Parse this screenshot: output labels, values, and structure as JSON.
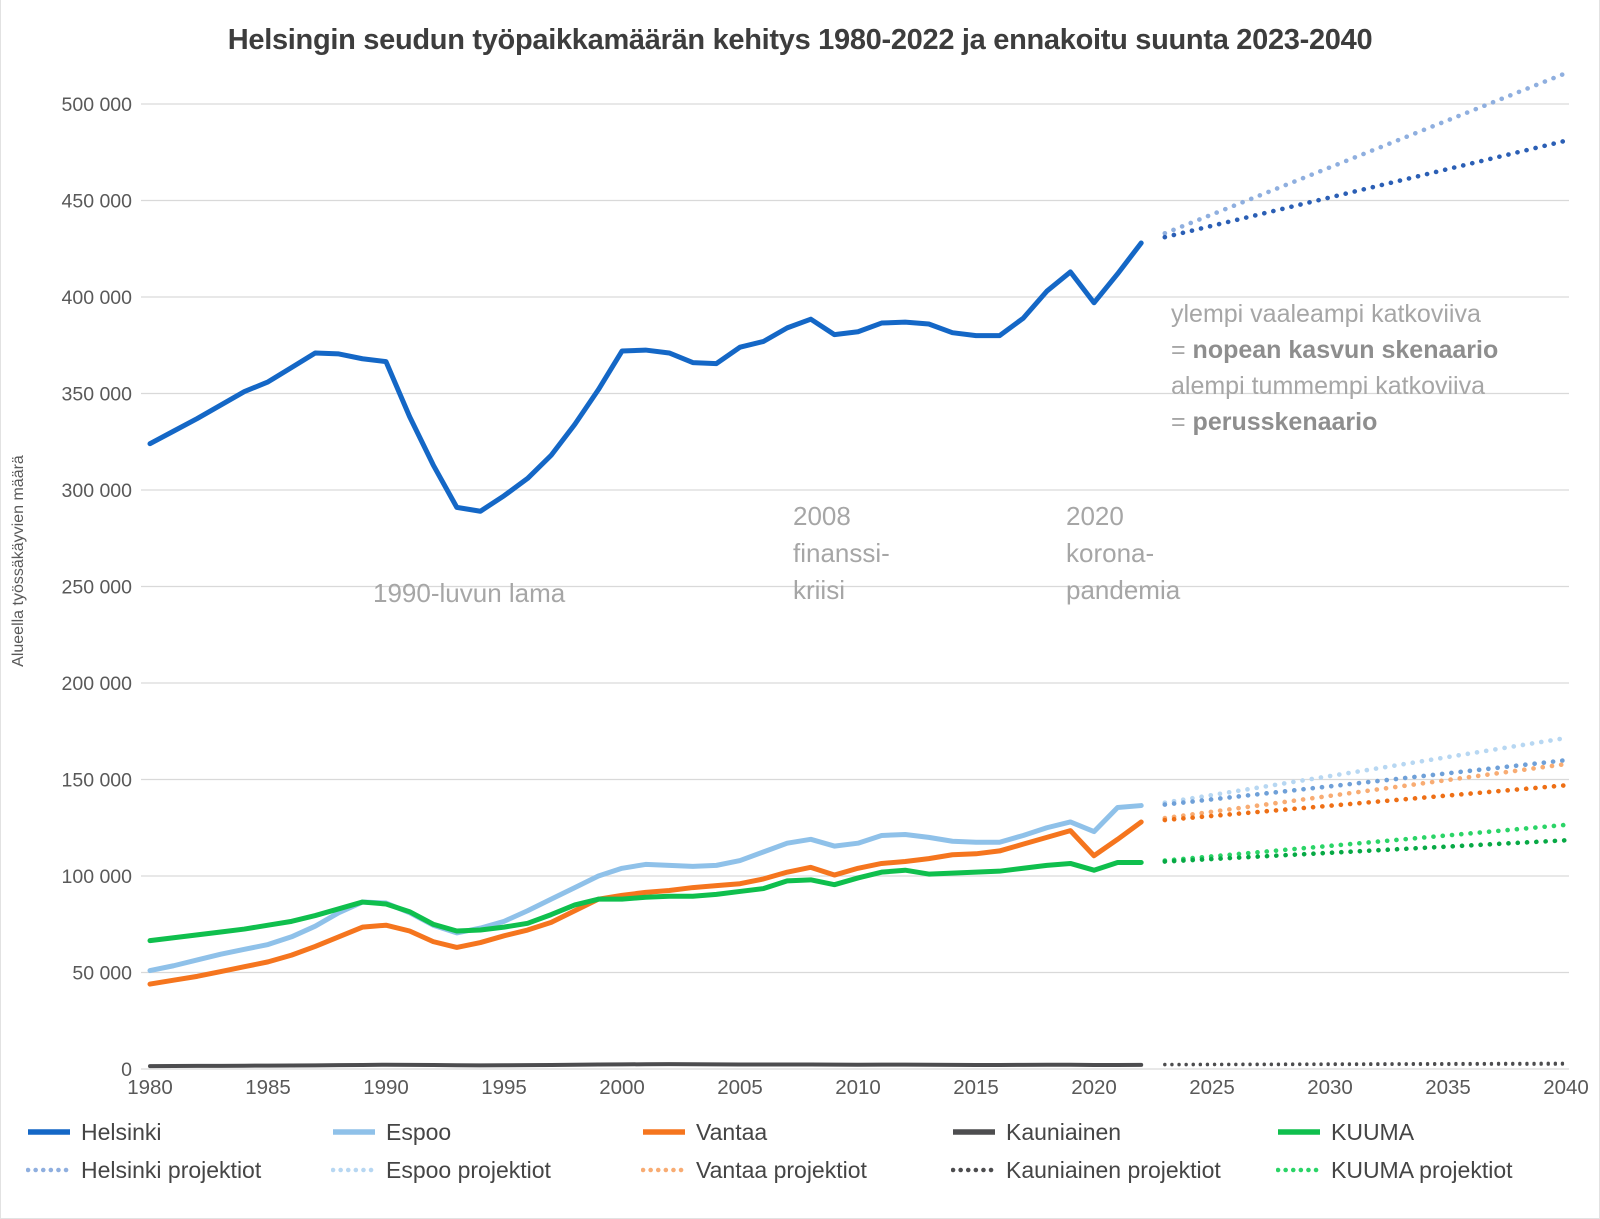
{
  "title": "Helsingin seudun työpaikkamäärän kehitys 1980-2022 ja ennakoitu suunta 2023-2040",
  "chart_data": {
    "type": "line",
    "title": "Helsingin seudun työpaikkamäärän kehitys 1980-2022 ja ennakoitu suunta 2023-2040",
    "xlabel": "",
    "ylabel": "Alueella työssäkäyvien määrä",
    "xlim": [
      1980,
      2040
    ],
    "ylim": [
      0,
      520000
    ],
    "grid": "horizontal-only",
    "x_ticks": [
      1980,
      1985,
      1990,
      1995,
      2000,
      2005,
      2010,
      2015,
      2020,
      2025,
      2030,
      2035,
      2040
    ],
    "y_ticks": [
      0,
      50000,
      100000,
      150000,
      200000,
      250000,
      300000,
      350000,
      400000,
      450000,
      500000
    ],
    "observed_years_start": 1980,
    "series": [
      {
        "name": "Helsinki",
        "color": "#1467C6",
        "style": "solid",
        "width": 5,
        "values": [
          324000,
          330500,
          337000,
          344000,
          351000,
          356000,
          363500,
          371000,
          370500,
          368000,
          366500,
          338000,
          313000,
          291000,
          289000,
          297000,
          306000,
          318000,
          334000,
          352000,
          372000,
          372500,
          371000,
          366000,
          365500,
          374000,
          377000,
          384000,
          388500,
          380500,
          382000,
          386500,
          387000,
          386000,
          381500,
          380000,
          380000,
          389000,
          403000,
          413000,
          397000,
          412000,
          428000
        ]
      },
      {
        "name": "Espoo",
        "color": "#8FC1E9",
        "style": "solid",
        "width": 5,
        "values": [
          51000,
          53500,
          56500,
          59500,
          62000,
          64500,
          68500,
          74000,
          81000,
          86500,
          86000,
          81000,
          74500,
          70500,
          73000,
          76500,
          82000,
          88000,
          94000,
          100000,
          104000,
          106000,
          105500,
          105000,
          105500,
          108000,
          112500,
          117000,
          119000,
          115500,
          117000,
          121000,
          121500,
          120000,
          118000,
          117500,
          117500,
          121000,
          125000,
          128000,
          123000,
          135500,
          136500
        ]
      },
      {
        "name": "Vantaa",
        "color": "#F5751E",
        "style": "solid",
        "width": 5,
        "values": [
          44000,
          46000,
          48000,
          50500,
          53000,
          55500,
          59000,
          63500,
          68500,
          73500,
          74500,
          71500,
          66000,
          63000,
          65500,
          69000,
          72000,
          76000,
          82000,
          88000,
          90000,
          91500,
          92500,
          94000,
          95000,
          96000,
          98500,
          102000,
          104500,
          100500,
          104000,
          106500,
          107500,
          109000,
          111000,
          111500,
          113000,
          116500,
          120000,
          123500,
          110500,
          119000,
          128000
        ]
      },
      {
        "name": "Kauniainen",
        "color": "#4D4D4F",
        "style": "solid",
        "width": 4,
        "values": [
          1500,
          1550,
          1600,
          1650,
          1700,
          1750,
          1800,
          1900,
          2000,
          2100,
          2200,
          2150,
          2050,
          1950,
          1900,
          1950,
          2000,
          2100,
          2200,
          2300,
          2400,
          2450,
          2500,
          2450,
          2400,
          2350,
          2300,
          2300,
          2350,
          2250,
          2200,
          2250,
          2250,
          2200,
          2150,
          2100,
          2100,
          2150,
          2200,
          2200,
          2100,
          2100,
          2150
        ]
      },
      {
        "name": "KUUMA",
        "color": "#0FBF4D",
        "style": "solid",
        "width": 5,
        "values": [
          66500,
          68000,
          69500,
          71000,
          72500,
          74500,
          76500,
          79500,
          83000,
          86500,
          85500,
          81500,
          75000,
          71500,
          72000,
          73500,
          75500,
          80000,
          85000,
          88000,
          88000,
          89000,
          89500,
          89500,
          90500,
          92000,
          93500,
          97500,
          98000,
          95500,
          99000,
          102000,
          103000,
          101000,
          101500,
          102000,
          102500,
          104000,
          105500,
          106500,
          103000,
          107000,
          107000
        ]
      }
    ],
    "projections": [
      {
        "name": "Helsinki nopean kasvun skenaario",
        "color": "#8FAFDF",
        "x": [
          2023,
          2040
        ],
        "values": [
          433000,
          516000
        ],
        "width": 4.6
      },
      {
        "name": "Helsinki perusskenaario",
        "color": "#2B5FB5",
        "x": [
          2023,
          2040
        ],
        "values": [
          431000,
          481000
        ],
        "width": 4.6
      },
      {
        "name": "Espoo nopean kasvun skenaario",
        "color": "#B7D7F2",
        "x": [
          2023,
          2040
        ],
        "values": [
          138000,
          171500
        ],
        "width": 4.6
      },
      {
        "name": "Espoo perusskenaario",
        "color": "#6FA0D8",
        "x": [
          2023,
          2040
        ],
        "values": [
          137000,
          160000
        ],
        "width": 4.6
      },
      {
        "name": "Vantaa nopean kasvun skenaario",
        "color": "#F8AC73",
        "x": [
          2023,
          2040
        ],
        "values": [
          130000,
          158000
        ],
        "width": 4.6
      },
      {
        "name": "Vantaa perusskenaario",
        "color": "#EE6F15",
        "x": [
          2023,
          2040
        ],
        "values": [
          129000,
          147000
        ],
        "width": 4.6
      },
      {
        "name": "Kauniainen nopean kasvun skenaario",
        "color": "#4D4D4F",
        "x": [
          2023,
          2040
        ],
        "values": [
          2400,
          3000
        ],
        "width": 3.2
      },
      {
        "name": "Kauniainen perusskenaario",
        "color": "#4D4D4F",
        "x": [
          2023,
          2040
        ],
        "values": [
          2200,
          2500
        ],
        "width": 3.2
      },
      {
        "name": "KUUMA nopean kasvun skenaario",
        "color": "#2BD467",
        "x": [
          2023,
          2040
        ],
        "values": [
          108000,
          126500
        ],
        "width": 4.6
      },
      {
        "name": "KUUMA perusskenaario",
        "color": "#07A945",
        "x": [
          2023,
          2040
        ],
        "values": [
          107500,
          118500
        ],
        "width": 4.6
      }
    ],
    "annotations": {
      "lama": "1990-luvun lama",
      "crisis_2008": [
        "2008",
        "finanssi-",
        "kriisi"
      ],
      "covid_2020": [
        "2020",
        "korona-",
        "pandemia"
      ],
      "scenario_note": {
        "line1": "ylempi vaaleampi katkoviiva",
        "line2_prefix": "= ",
        "line2_bold": "nopean kasvun skenaario",
        "line3": "alempi tummempi katkoviiva",
        "line4_prefix": "= ",
        "line4_bold": "perusskenaario"
      }
    },
    "legend": {
      "position": "bottom",
      "row1": [
        {
          "label": "Helsinki",
          "color": "#1467C6",
          "style": "solid"
        },
        {
          "label": "Espoo",
          "color": "#8FC1E9",
          "style": "solid"
        },
        {
          "label": "Vantaa",
          "color": "#F5751E",
          "style": "solid"
        },
        {
          "label": "Kauniainen",
          "color": "#4D4D4F",
          "style": "solid"
        },
        {
          "label": "KUUMA",
          "color": "#0FBF4D",
          "style": "solid"
        }
      ],
      "row2": [
        {
          "label": "Helsinki projektiot",
          "color": "#8FAFDF",
          "style": "dotted"
        },
        {
          "label": "Espoo projektiot",
          "color": "#B7D7F2",
          "style": "dotted"
        },
        {
          "label": "Vantaa projektiot",
          "color": "#F8AC73",
          "style": "dotted"
        },
        {
          "label": "Kauniainen projektiot",
          "color": "#4D4D4F",
          "style": "dotted"
        },
        {
          "label": "KUUMA projektiot",
          "color": "#2BD467",
          "style": "dotted"
        }
      ]
    },
    "colors": {
      "gridline": "#D9D9D9",
      "tick_label": "#595959",
      "title": "#3d3d3d",
      "annotation": "#a6a6a6"
    }
  }
}
